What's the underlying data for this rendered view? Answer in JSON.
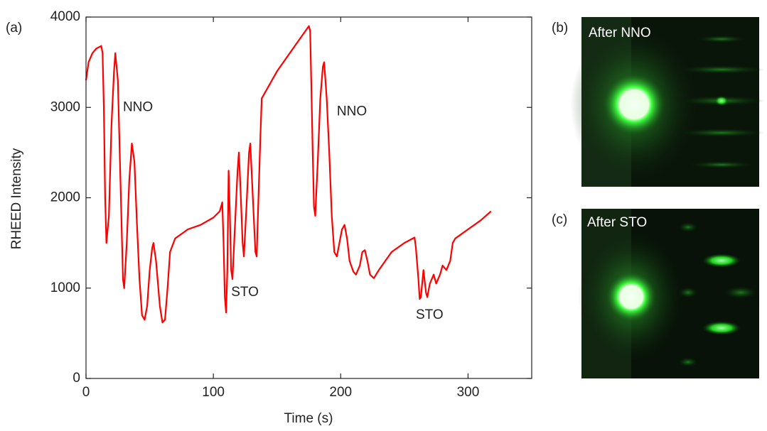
{
  "chart_data": {
    "type": "line",
    "panel_label": "(a)",
    "x_label": "Time (s)",
    "y_label": "RHEED Intensity",
    "xlim": [
      0,
      350
    ],
    "ylim": [
      0,
      4000
    ],
    "xticks": [
      0,
      100,
      200,
      300
    ],
    "yticks": [
      0,
      1000,
      2000,
      3000,
      4000
    ],
    "series": [
      {
        "color": "#ff0000",
        "x": [
          0,
          2,
          5,
          8,
          12,
          13,
          14,
          15,
          16,
          18,
          20,
          22,
          23,
          25,
          27,
          29,
          30,
          32,
          34,
          36,
          38,
          40,
          42,
          44,
          46,
          48,
          50,
          52,
          53,
          55,
          58,
          60,
          62,
          64,
          66,
          70,
          75,
          80,
          90,
          100,
          105,
          107,
          108,
          109,
          110,
          111,
          112,
          113,
          114,
          115,
          117,
          119,
          120,
          121,
          123,
          124,
          126,
          128,
          129,
          131,
          133,
          134,
          135,
          137,
          138,
          140,
          150,
          160,
          170,
          175,
          176,
          177,
          178,
          179,
          180,
          182,
          184,
          186,
          187,
          189,
          191,
          193,
          195,
          197,
          199,
          201,
          203,
          205,
          207,
          210,
          212,
          215,
          217,
          219,
          221,
          223,
          226,
          230,
          240,
          250,
          258,
          259,
          261,
          262,
          263,
          265,
          267,
          268,
          270,
          273,
          275,
          278,
          280,
          283,
          286,
          288,
          290,
          300,
          310,
          318
        ],
        "values": [
          3300,
          3500,
          3600,
          3650,
          3680,
          3600,
          3000,
          2000,
          1500,
          1800,
          2800,
          3400,
          3600,
          3300,
          2200,
          1100,
          1000,
          1500,
          2200,
          2600,
          2400,
          1700,
          1100,
          700,
          650,
          800,
          1200,
          1450,
          1500,
          1300,
          800,
          620,
          650,
          1000,
          1400,
          1550,
          1600,
          1650,
          1700,
          1780,
          1850,
          1950,
          1500,
          900,
          730,
          1200,
          2300,
          1800,
          1200,
          1100,
          1700,
          2300,
          2500,
          2200,
          1500,
          1350,
          1900,
          2500,
          2600,
          2000,
          1400,
          1350,
          1800,
          2700,
          3100,
          3150,
          3400,
          3600,
          3800,
          3900,
          3850,
          3200,
          2500,
          1900,
          1800,
          2400,
          3100,
          3450,
          3500,
          3100,
          2500,
          1800,
          1400,
          1350,
          1500,
          1650,
          1700,
          1550,
          1300,
          1180,
          1150,
          1250,
          1400,
          1420,
          1300,
          1150,
          1110,
          1200,
          1400,
          1500,
          1560,
          1450,
          1100,
          880,
          900,
          1200,
          950,
          900,
          1050,
          1150,
          1050,
          1150,
          1250,
          1200,
          1300,
          1500,
          1550,
          1650,
          1750,
          1850
        ]
      }
    ],
    "annotations": [
      {
        "text": "NNO",
        "x": 29,
        "y": 3000
      },
      {
        "text": "STO",
        "x": 114,
        "y": 950
      },
      {
        "text": "NNO",
        "x": 197,
        "y": 2950
      },
      {
        "text": "STO",
        "x": 259,
        "y": 700
      }
    ]
  },
  "panels": [
    {
      "label": "(b)",
      "caption": "After NNO"
    },
    {
      "label": "(c)",
      "caption": "After STO"
    }
  ]
}
